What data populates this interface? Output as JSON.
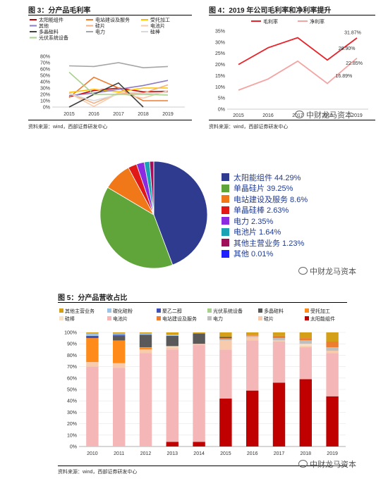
{
  "fig3": {
    "title": "图 3：分产品毛利率",
    "source": "资料来源：wind，西部证券研发中心",
    "chart_data": {
      "type": "line",
      "x": [
        "2015",
        "2016",
        "2017",
        "2018",
        "2019"
      ],
      "ylim": [
        0,
        80
      ],
      "yticks": [
        "0%",
        "10%",
        "20%",
        "30%",
        "40%",
        "50%",
        "60%",
        "70%",
        "80%"
      ],
      "series": [
        {
          "name": "太阳能组件",
          "color": "#c00000",
          "values": [
            16,
            26,
            30,
            24,
            25
          ]
        },
        {
          "name": "电站建设及服务",
          "color": "#ed7d31",
          "values": [
            15,
            47,
            30,
            10,
            10
          ]
        },
        {
          "name": "受托加工",
          "color": "#ffc000",
          "values": [
            23,
            28,
            24,
            30,
            30
          ]
        },
        {
          "name": "其他",
          "color": "#8e7cc3",
          "values": [
            18,
            22,
            28,
            34,
            42
          ]
        },
        {
          "name": "硅片",
          "color": "#f4b183",
          "values": [
            22,
            6,
            22,
            22,
            35
          ]
        },
        {
          "name": "电池片",
          "color": "#f8cbad",
          "values": [
            22,
            1,
            22,
            14,
            26
          ]
        },
        {
          "name": "多晶硅料",
          "color": "#404040",
          "values": [
            0,
            20,
            38,
            0,
            null
          ]
        },
        {
          "name": "电力",
          "color": "#a6a6a6",
          "values": [
            65,
            64,
            70,
            62,
            64
          ]
        },
        {
          "name": "硅棒",
          "color": "#d9d9d9",
          "values": [
            21,
            10,
            20,
            21,
            23
          ]
        },
        {
          "name": "光伏系统设备",
          "color": "#a9d18e",
          "values": [
            55,
            20,
            20,
            20,
            19
          ]
        }
      ]
    }
  },
  "fig4": {
    "title": "图 4：2019 年公司毛利率和净利率提升",
    "chart_data": {
      "type": "line",
      "x": [
        "2015",
        "2016",
        "2017",
        "2018",
        "2019"
      ],
      "ylim": [
        0,
        35
      ],
      "yticks": [
        "0%",
        "5%",
        "10%",
        "15%",
        "20%",
        "25%",
        "30%",
        "35%"
      ],
      "series": [
        {
          "name": "毛利率",
          "color": "#e8232a",
          "values": [
            20.0,
            27.5,
            32.0,
            22.0,
            31.87
          ]
        },
        {
          "name": "净利率",
          "color": "#f4a3a3",
          "values": [
            8.5,
            13.5,
            21.5,
            11.5,
            22.85
          ]
        }
      ],
      "annotations": [
        "28.90%",
        "31.87%",
        "16.89%",
        "22.85%"
      ]
    }
  },
  "pie": {
    "chart_data": {
      "type": "pie",
      "slices": [
        {
          "label": "太阳能组件 44.29%",
          "value": 44.29,
          "color": "#2e3b8f"
        },
        {
          "label": "单晶硅片 39.25%",
          "value": 39.25,
          "color": "#5fa53a"
        },
        {
          "label": "电站建设及服务 8.6%",
          "value": 8.6,
          "color": "#f07818"
        },
        {
          "label": "单晶硅棒 2.63%",
          "value": 2.63,
          "color": "#e01818"
        },
        {
          "label": "电力 2.35%",
          "value": 2.35,
          "color": "#8a2be2"
        },
        {
          "label": "电池片 1.64%",
          "value": 1.64,
          "color": "#1aa3b5"
        },
        {
          "label": "其他主营业务 1.23%",
          "value": 1.23,
          "color": "#a0105a"
        },
        {
          "label": "其他 0.01%",
          "value": 0.01,
          "color": "#2020ff"
        }
      ]
    }
  },
  "fig5": {
    "title": "图 5：分产品营收占比",
    "source": "资料来源：wind，西部证券研发中心",
    "chart_data": {
      "type": "bar",
      "stacked": true,
      "categories": [
        "2010",
        "2011",
        "2012",
        "2013",
        "2014",
        "2015",
        "2016",
        "2017",
        "2018",
        "2019"
      ],
      "ylim": [
        0,
        100
      ],
      "yticks": [
        "0%",
        "10%",
        "20%",
        "30%",
        "40%",
        "50%",
        "60%",
        "70%",
        "80%",
        "90%",
        "100%"
      ],
      "series": [
        {
          "name": "太阳能组件",
          "color": "#c00000",
          "values": [
            0,
            0,
            0,
            4,
            4,
            42,
            49,
            56,
            59,
            44
          ]
        },
        {
          "name": "电池片",
          "color": "#f4b6b6",
          "values": [
            70,
            69,
            82,
            81,
            85,
            43,
            44,
            36,
            28,
            38
          ]
        },
        {
          "name": "硅片",
          "color": "#f8cbad",
          "values": [
            4,
            4,
            3,
            2,
            1,
            8,
            3,
            1,
            1,
            2
          ]
        },
        {
          "name": "硅棒",
          "color": "#fbe0c8",
          "values": [
            0,
            0,
            0,
            1,
            0,
            0,
            0,
            0,
            2,
            0
          ]
        },
        {
          "name": "电力",
          "color": "#bfbfbf",
          "values": [
            0,
            0,
            0,
            0,
            0,
            1,
            1,
            2,
            3,
            3
          ]
        },
        {
          "name": "电站建设及服务",
          "color": "#ed7d31",
          "values": [
            0,
            0,
            0,
            0,
            0,
            1,
            1,
            2,
            2,
            5
          ]
        },
        {
          "name": "光伏系统设备",
          "color": "#a9d18e",
          "values": [
            0,
            0,
            0,
            0,
            0,
            0,
            0,
            0,
            0,
            0
          ]
        },
        {
          "name": "受托加工",
          "color": "#ff8c1a",
          "values": [
            21,
            20,
            2,
            0,
            0,
            0,
            0,
            0,
            0,
            0
          ]
        },
        {
          "name": "多晶硅料",
          "color": "#595959",
          "values": [
            0,
            4,
            11,
            9,
            9,
            1,
            0,
            0,
            0,
            0
          ]
        },
        {
          "name": "聚乙二醇",
          "color": "#3f51b5",
          "values": [
            2,
            1,
            0,
            0,
            0,
            0,
            0,
            0,
            0,
            0
          ]
        },
        {
          "name": "碳化硅粉",
          "color": "#9dc3e6",
          "values": [
            2,
            1,
            1,
            1,
            0,
            0,
            0,
            0,
            0,
            0
          ]
        },
        {
          "name": "其他主营业务",
          "color": "#d4a017",
          "values": [
            1,
            1,
            1,
            2,
            1,
            4,
            2,
            3,
            5,
            8
          ]
        }
      ]
    }
  },
  "fig4_source": "资料来源：wind，西部证券研发中心",
  "watermark": "中财龙马资本"
}
